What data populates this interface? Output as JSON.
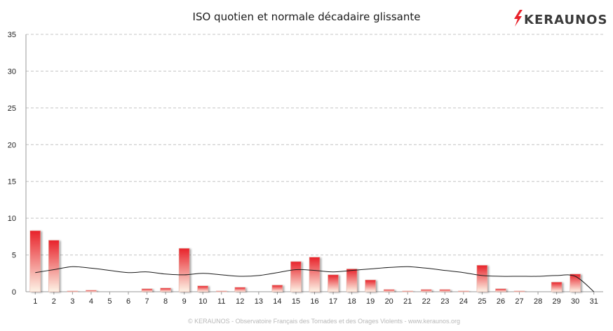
{
  "brand": {
    "name": "KERAUNOS",
    "color": "#3a3a3a",
    "bolt_color": "#e8222a"
  },
  "footer": "© KERAUNOS - Observatoire Français des Tornades et des Orages Violents - www.keraunos.org",
  "chart_data": {
    "type": "bar",
    "title": "ISO quotien et normale décadaire glissante",
    "xlabel": "",
    "ylabel": "",
    "ylim": [
      0,
      35
    ],
    "yticks": [
      0,
      5,
      10,
      15,
      20,
      25,
      30,
      35
    ],
    "grid": true,
    "categories": [
      "1",
      "2",
      "3",
      "4",
      "5",
      "6",
      "7",
      "8",
      "9",
      "10",
      "11",
      "12",
      "13",
      "14",
      "15",
      "16",
      "17",
      "18",
      "19",
      "20",
      "21",
      "22",
      "23",
      "24",
      "25",
      "26",
      "27",
      "28",
      "29",
      "30",
      "31"
    ],
    "series": [
      {
        "type": "bar",
        "values": [
          8.3,
          7.0,
          0.1,
          0.2,
          0,
          0,
          0.4,
          0.5,
          5.9,
          0.8,
          0.1,
          0.6,
          0,
          0.9,
          4.1,
          4.7,
          2.3,
          3.1,
          1.6,
          0.3,
          0.1,
          0.3,
          0.3,
          0.1,
          3.6,
          0.4,
          0.1,
          0,
          1.3,
          2.4,
          0
        ],
        "color_top": "#e8222a",
        "color_bottom": "#fdf3e6"
      },
      {
        "type": "line",
        "values": [
          2.6,
          3.0,
          3.4,
          3.2,
          2.9,
          2.6,
          2.7,
          2.4,
          2.3,
          2.5,
          2.3,
          2.1,
          2.2,
          2.6,
          3.0,
          2.9,
          2.7,
          2.9,
          3.1,
          3.3,
          3.4,
          3.2,
          2.9,
          2.6,
          2.2,
          2.1,
          2.1,
          2.1,
          2.2,
          2.1,
          0
        ],
        "color": "#1a1a1a"
      }
    ]
  }
}
